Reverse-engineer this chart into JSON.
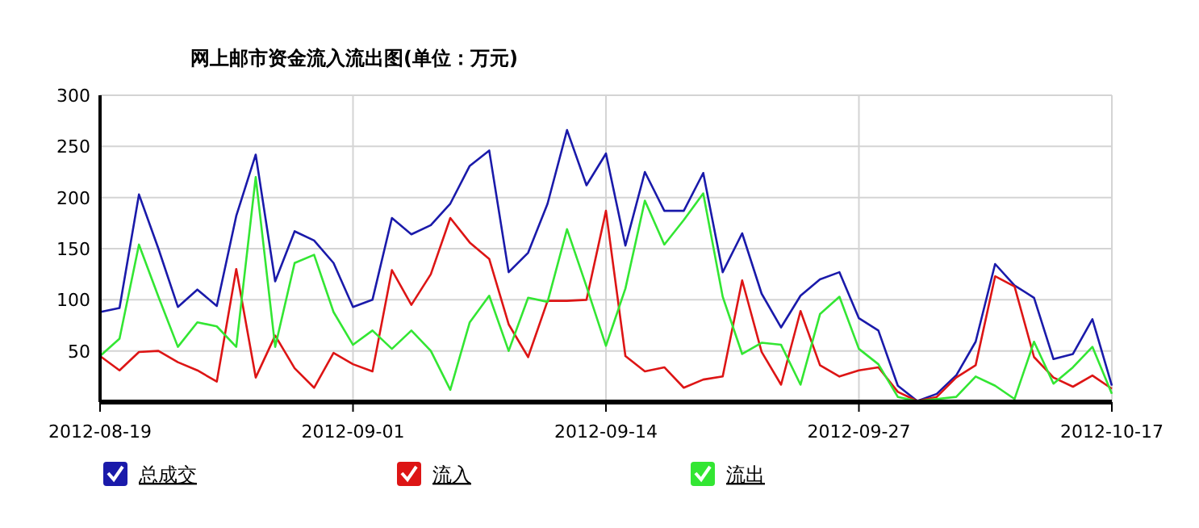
{
  "chart_data": {
    "type": "line",
    "title": "网上邮市资金流入流出图(单位：万元)",
    "categories": [
      "2012-08-19",
      null,
      null,
      null,
      null,
      null,
      null,
      null,
      null,
      null,
      null,
      null,
      null,
      "2012-09-01",
      null,
      null,
      null,
      null,
      null,
      null,
      null,
      null,
      null,
      null,
      null,
      null,
      "2012-09-14",
      null,
      null,
      null,
      null,
      null,
      null,
      null,
      null,
      null,
      null,
      null,
      null,
      "2012-09-27",
      null,
      null,
      null,
      null,
      null,
      null,
      null,
      null,
      null,
      null,
      null,
      null,
      "2012-10-17"
    ],
    "series": [
      {
        "name": "总成交",
        "color": "#1a1aaa",
        "values": [
          88,
          92,
          203,
          150,
          93,
          110,
          94,
          182,
          242,
          118,
          167,
          158,
          136,
          93,
          100,
          180,
          164,
          173,
          194,
          231,
          246,
          127,
          146,
          194,
          266,
          212,
          243,
          153,
          225,
          187,
          187,
          224,
          127,
          165,
          106,
          73,
          104,
          120,
          127,
          82,
          70,
          16,
          1,
          8,
          26,
          59,
          135,
          114,
          102,
          42,
          47,
          81,
          16
        ]
      },
      {
        "name": "流入",
        "color": "#dd1515",
        "values": [
          45,
          31,
          49,
          50,
          39,
          31,
          20,
          130,
          24,
          65,
          33,
          14,
          48,
          37,
          30,
          129,
          95,
          125,
          180,
          156,
          140,
          76,
          44,
          99,
          99,
          100,
          187,
          45,
          30,
          34,
          14,
          22,
          25,
          119,
          49,
          17,
          89,
          36,
          25,
          31,
          34,
          10,
          1,
          5,
          24,
          36,
          123,
          113,
          44,
          24,
          15,
          26,
          13
        ]
      },
      {
        "name": "流出",
        "color": "#33e633",
        "values": [
          45,
          62,
          154,
          103,
          54,
          78,
          74,
          54,
          220,
          54,
          136,
          144,
          88,
          56,
          70,
          52,
          70,
          50,
          12,
          78,
          104,
          50,
          102,
          98,
          169,
          113,
          55,
          111,
          197,
          154,
          178,
          204,
          103,
          47,
          58,
          56,
          17,
          86,
          103,
          52,
          37,
          5,
          1,
          3,
          5,
          25,
          16,
          3,
          59,
          18,
          34,
          54,
          8
        ]
      }
    ],
    "ylim": [
      0,
      300
    ],
    "yticks": [
      50,
      100,
      150,
      200,
      250,
      300
    ],
    "grid": true,
    "legend": "bottom",
    "marker": "none",
    "line_style": "solid"
  }
}
